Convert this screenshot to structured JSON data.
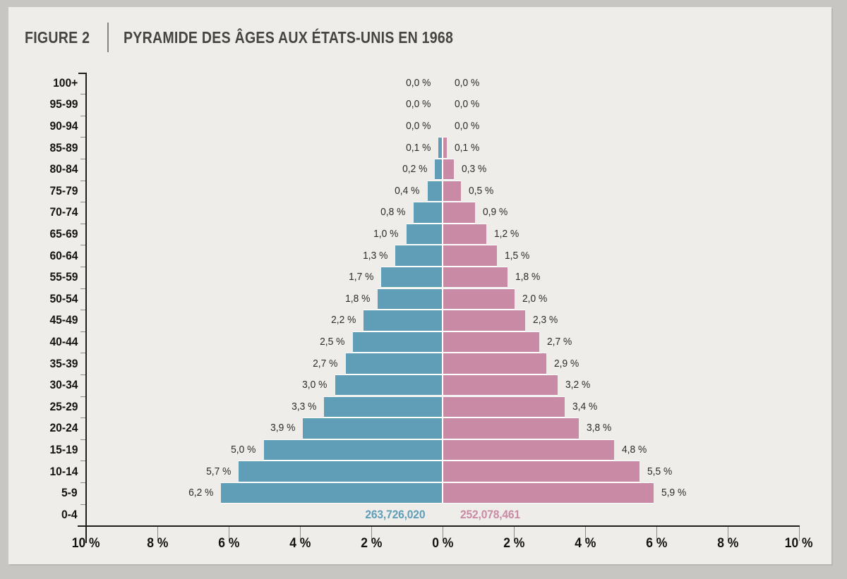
{
  "figure": {
    "label": "FIGURE 2",
    "title": "PYRAMIDE DES ÂGES AUX ÉTATS-UNIS EN 1968"
  },
  "chart_data": {
    "type": "bar",
    "subtype": "population-pyramid",
    "title": "PYRAMIDE DES ÂGES AUX ÉTATS-UNIS EN 1968",
    "unit": "percent of total population per sex and age group",
    "legend_position": "none",
    "grid": false,
    "x_axis": {
      "tick_labels_left_to_right": [
        "10 %",
        "8 %",
        "6 %",
        "4 %",
        "2 %",
        "0 %",
        "2 %",
        "4 %",
        "6 %",
        "8 %",
        "10 %"
      ],
      "max_percent": 10,
      "step_percent": 2
    },
    "colors": {
      "male": "#609eb8",
      "female": "#c98aa6",
      "axis": "#1e1d1a",
      "minor_tick": "#8b8a85",
      "gap_white": "#ffffff",
      "canvas": "#eeede9",
      "frame": "#c8c6c2"
    },
    "sides": {
      "left_series": "male",
      "right_series": "female"
    },
    "rows_top_to_bottom": [
      {
        "age": "100+",
        "male": 0.0,
        "female": 0.0,
        "male_label": "0,0 %",
        "female_label": "0,0 %"
      },
      {
        "age": "95-99",
        "male": 0.0,
        "female": 0.0,
        "male_label": "0,0 %",
        "female_label": "0,0 %"
      },
      {
        "age": "90-94",
        "male": 0.0,
        "female": 0.0,
        "male_label": "0,0 %",
        "female_label": "0,0 %"
      },
      {
        "age": "85-89",
        "male": 0.1,
        "female": 0.1,
        "male_label": "0,1 %",
        "female_label": "0,1 %"
      },
      {
        "age": "80-84",
        "male": 0.2,
        "female": 0.3,
        "male_label": "0,2 %",
        "female_label": "0,3 %"
      },
      {
        "age": "75-79",
        "male": 0.4,
        "female": 0.5,
        "male_label": "0,4 %",
        "female_label": "0,5 %"
      },
      {
        "age": "70-74",
        "male": 0.8,
        "female": 0.9,
        "male_label": "0,8 %",
        "female_label": "0,9 %"
      },
      {
        "age": "65-69",
        "male": 1.0,
        "female": 1.2,
        "male_label": "1,0 %",
        "female_label": "1,2 %"
      },
      {
        "age": "60-64",
        "male": 1.3,
        "female": 1.5,
        "male_label": "1,3 %",
        "female_label": "1,5 %"
      },
      {
        "age": "55-59",
        "male": 1.7,
        "female": 1.8,
        "male_label": "1,7 %",
        "female_label": "1,8 %"
      },
      {
        "age": "50-54",
        "male": 1.8,
        "female": 2.0,
        "male_label": "1,8 %",
        "female_label": "2,0 %"
      },
      {
        "age": "45-49",
        "male": 2.2,
        "female": 2.3,
        "male_label": "2,2 %",
        "female_label": "2,3 %"
      },
      {
        "age": "40-44",
        "male": 2.5,
        "female": 2.7,
        "male_label": "2,5 %",
        "female_label": "2,7 %"
      },
      {
        "age": "35-39",
        "male": 2.7,
        "female": 2.9,
        "male_label": "2,7 %",
        "female_label": "2,9 %"
      },
      {
        "age": "30-34",
        "male": 3.0,
        "female": 3.2,
        "male_label": "3,0 %",
        "female_label": "3,2 %"
      },
      {
        "age": "25-29",
        "male": 3.3,
        "female": 3.4,
        "male_label": "3,3 %",
        "female_label": "3,4 %"
      },
      {
        "age": "20-24",
        "male": 3.9,
        "female": 3.8,
        "male_label": "3,9 %",
        "female_label": "3,8 %"
      },
      {
        "age": "15-19",
        "male": 5.0,
        "female": 4.8,
        "male_label": "5,0 %",
        "female_label": "4,8 %"
      },
      {
        "age": "10-14",
        "male": 5.7,
        "female": 5.5,
        "male_label": "5,7 %",
        "female_label": "5,5 %"
      },
      {
        "age": "5-9",
        "male": 6.2,
        "female": 5.9,
        "male_label": "6,2 %",
        "female_label": "5,9 %"
      },
      {
        "age": "0-4",
        "male": null,
        "female": null,
        "male_label": "",
        "female_label": ""
      }
    ],
    "totals": {
      "male": "263,726,020",
      "female": "252,078,461",
      "shown_in_row": "0-4"
    }
  }
}
